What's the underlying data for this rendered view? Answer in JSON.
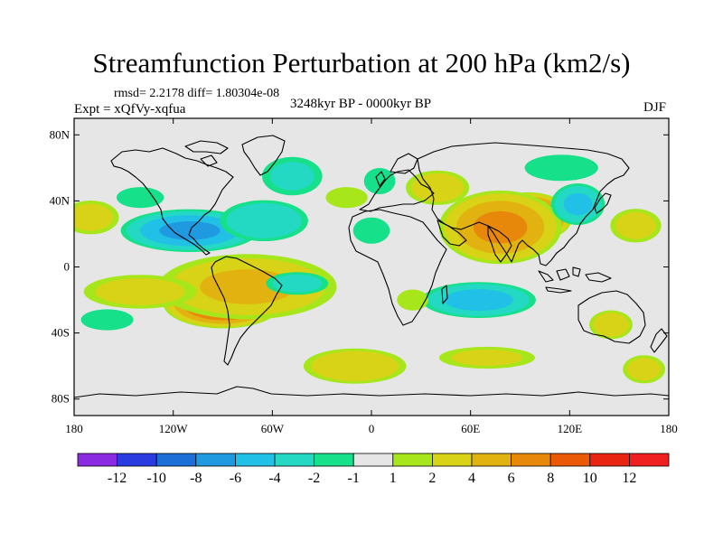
{
  "chart_data": {
    "type": "filled-contour map",
    "title": "Streamfunction Perturbation at 200 hPa (km2/s)",
    "stats_text": "rmsd= 2.2178 diff= 1.80304e-08",
    "experiment_text": "Expt = xQfVy-xqfua",
    "period_text": "3248kyr BP - 0000kyr BP",
    "season_text": "DJF",
    "x_ticks": [
      {
        "value": -180,
        "label": "180"
      },
      {
        "value": -120,
        "label": "120W"
      },
      {
        "value": -60,
        "label": "60W"
      },
      {
        "value": 0,
        "label": "0"
      },
      {
        "value": 60,
        "label": "60E"
      },
      {
        "value": 120,
        "label": "120E"
      },
      {
        "value": 180,
        "label": "180"
      }
    ],
    "y_ticks": [
      {
        "value": 80,
        "label": "80N"
      },
      {
        "value": 40,
        "label": "40N"
      },
      {
        "value": 0,
        "label": "0"
      },
      {
        "value": -40,
        "label": "40S"
      },
      {
        "value": -80,
        "label": "80S"
      }
    ],
    "x_range": [
      -180,
      180
    ],
    "y_range": [
      -90,
      90
    ],
    "contour_levels": [
      -12,
      -10,
      -8,
      -6,
      -4,
      -2,
      -1,
      1,
      2,
      4,
      6,
      8,
      10,
      12
    ],
    "colorbar_labels": [
      "-12",
      "-10",
      "-8",
      "-6",
      "-4",
      "-2",
      "-1",
      "1",
      "2",
      "4",
      "6",
      "8",
      "10",
      "12"
    ],
    "colorbar_colors": [
      "#8a2be2",
      "#2a3be0",
      "#1b6fd6",
      "#1f9ae0",
      "#21c0e6",
      "#23d9c4",
      "#16e08a",
      "#e6e6e6",
      "#a6e61a",
      "#d8d317",
      "#e2b310",
      "#e8880a",
      "#ea5a06",
      "#e82510",
      "#f02020"
    ],
    "anomaly_centers": [
      {
        "lon": -90,
        "lat": -22,
        "value": 9,
        "rlon": 38,
        "rlat": 16
      },
      {
        "lon": -75,
        "lat": -12,
        "value": 4,
        "rlon": 60,
        "rlat": 22
      },
      {
        "lon": -140,
        "lat": -15,
        "value": 2.5,
        "rlon": 40,
        "rlat": 12
      },
      {
        "lon": -110,
        "lat": 22,
        "value": -6,
        "rlon": 45,
        "rlat": 14
      },
      {
        "lon": -65,
        "lat": 28,
        "value": -3.5,
        "rlon": 30,
        "rlat": 14
      },
      {
        "lon": -170,
        "lat": 30,
        "value": 2.5,
        "rlon": 20,
        "rlat": 12
      },
      {
        "lon": -140,
        "lat": 42,
        "value": -1.5,
        "rlon": 18,
        "rlat": 8
      },
      {
        "lon": -48,
        "lat": 55,
        "value": -2,
        "rlon": 22,
        "rlat": 14
      },
      {
        "lon": -45,
        "lat": -10,
        "value": -2.5,
        "rlon": 22,
        "rlat": 8
      },
      {
        "lon": -15,
        "lat": 42,
        "value": 1.5,
        "rlon": 16,
        "rlat": 8
      },
      {
        "lon": 0,
        "lat": 22,
        "value": -1.5,
        "rlon": 14,
        "rlat": 10
      },
      {
        "lon": 5,
        "lat": 52,
        "value": -1.5,
        "rlon": 12,
        "rlat": 10
      },
      {
        "lon": 40,
        "lat": 48,
        "value": 3,
        "rlon": 22,
        "rlat": 12
      },
      {
        "lon": 95,
        "lat": 30,
        "value": 9.5,
        "rlon": 28,
        "rlat": 16
      },
      {
        "lon": 78,
        "lat": 24,
        "value": 6,
        "rlon": 40,
        "rlat": 24
      },
      {
        "lon": 125,
        "lat": 38,
        "value": -4,
        "rlon": 18,
        "rlat": 14
      },
      {
        "lon": 115,
        "lat": 60,
        "value": -1.5,
        "rlon": 28,
        "rlat": 10
      },
      {
        "lon": 160,
        "lat": 25,
        "value": 2.5,
        "rlon": 18,
        "rlat": 12
      },
      {
        "lon": 65,
        "lat": -20,
        "value": -4.5,
        "rlon": 38,
        "rlat": 12
      },
      {
        "lon": 25,
        "lat": -20,
        "value": 1.5,
        "rlon": 12,
        "rlat": 8
      },
      {
        "lon": 145,
        "lat": -35,
        "value": 3,
        "rlon": 15,
        "rlat": 10
      },
      {
        "lon": 165,
        "lat": -62,
        "value": 2.5,
        "rlon": 15,
        "rlat": 10
      },
      {
        "lon": -10,
        "lat": -60,
        "value": 3.5,
        "rlon": 35,
        "rlat": 12
      },
      {
        "lon": 70,
        "lat": -55,
        "value": 2,
        "rlon": 35,
        "rlat": 8
      },
      {
        "lon": -160,
        "lat": -32,
        "value": -1.5,
        "rlon": 20,
        "rlat": 8
      }
    ]
  }
}
